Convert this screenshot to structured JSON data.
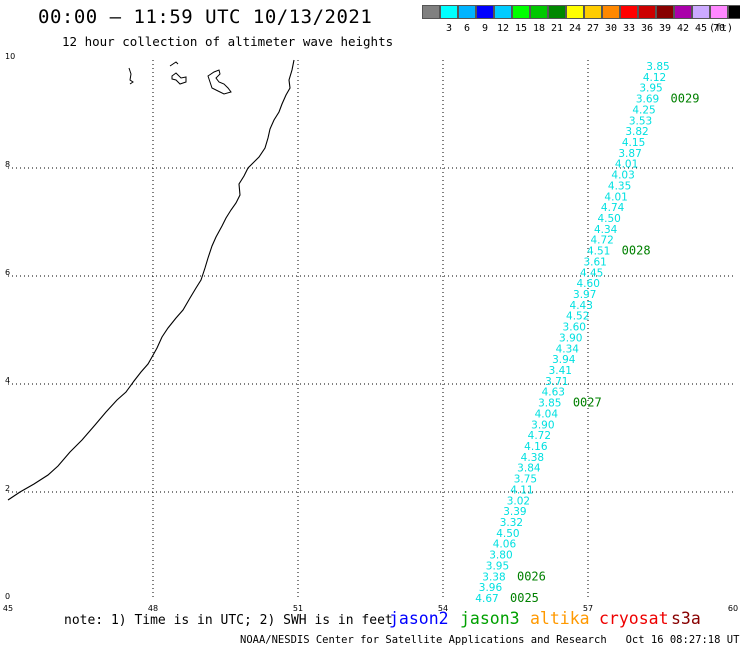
{
  "header": {
    "title": "00:00 – 11:59 UTC 10/13/2021",
    "subtitle": "12 hour collection of altimeter wave heights"
  },
  "legend": {
    "unit": "(ft)",
    "swatches": [
      {
        "label": "",
        "color": "#808080"
      },
      {
        "label": "3",
        "color": "#00ffff"
      },
      {
        "label": "6",
        "color": "#00b4ff"
      },
      {
        "label": "9",
        "color": "#0000ff"
      },
      {
        "label": "12",
        "color": "#00ccff"
      },
      {
        "label": "15",
        "color": "#00ff00"
      },
      {
        "label": "18",
        "color": "#00c800"
      },
      {
        "label": "21",
        "color": "#008800"
      },
      {
        "label": "24",
        "color": "#ffff00"
      },
      {
        "label": "27",
        "color": "#ffcc00"
      },
      {
        "label": "30",
        "color": "#ff8800"
      },
      {
        "label": "33",
        "color": "#ff0000"
      },
      {
        "label": "36",
        "color": "#cc0000"
      },
      {
        "label": "39",
        "color": "#880000"
      },
      {
        "label": "42",
        "color": "#aa00aa"
      },
      {
        "label": "45",
        "color": "#ccaaff"
      },
      {
        "label": "70",
        "color": "#ff88ff"
      },
      {
        "label": "",
        "color": "#000000"
      }
    ]
  },
  "map": {
    "x_ticks": [
      "45",
      "48",
      "51",
      "54",
      "57",
      "60"
    ],
    "y_ticks": [
      "0",
      "2",
      "4",
      "6",
      "8",
      "10"
    ],
    "track_color": "#00e0e0",
    "time_color": "#008000",
    "swh_values": [
      "4.67",
      "3.96",
      "3.38",
      "3.95",
      "3.80",
      "4.06",
      "4.50",
      "3.32",
      "3.39",
      "3.02",
      "4.11",
      "3.75",
      "3.84",
      "4.38",
      "4.16",
      "4.72",
      "3.90",
      "4.04",
      "3.85",
      "4.63",
      "3.71",
      "3.41",
      "3.94",
      "4.34",
      "3.90",
      "3.60",
      "4.52",
      "4.43",
      "3.97",
      "4.60",
      "4.45",
      "3.61",
      "4.51",
      "4.72",
      "4.34",
      "4.50",
      "4.74",
      "4.01",
      "4.35",
      "4.03",
      "4.01",
      "3.87",
      "4.15",
      "3.82",
      "3.53",
      "4.25",
      "3.69",
      "3.95",
      "4.12",
      "3.85"
    ],
    "time_labels": [
      {
        "label": "0025",
        "at": 0
      },
      {
        "label": "0026",
        "at": 2
      },
      {
        "label": "0027",
        "at": 18
      },
      {
        "label": "0028",
        "at": 32
      },
      {
        "label": "0029",
        "at": 46
      }
    ]
  },
  "footer": {
    "note": "note: 1) Time is in UTC; 2) SWH is in feet",
    "satellites": [
      {
        "name": "jason2",
        "color": "#0000ff"
      },
      {
        "name": "jason3",
        "color": "#00a000"
      },
      {
        "name": "altika",
        "color": "#ff9900"
      },
      {
        "name": "cryosat",
        "color": "#ee0000"
      },
      {
        "name": "s3a",
        "color": "#880000"
      }
    ],
    "credit": "NOAA/NESDIS Center for Satellite Applications and Research   Oct 16 08:27:18 UTC 2021"
  }
}
